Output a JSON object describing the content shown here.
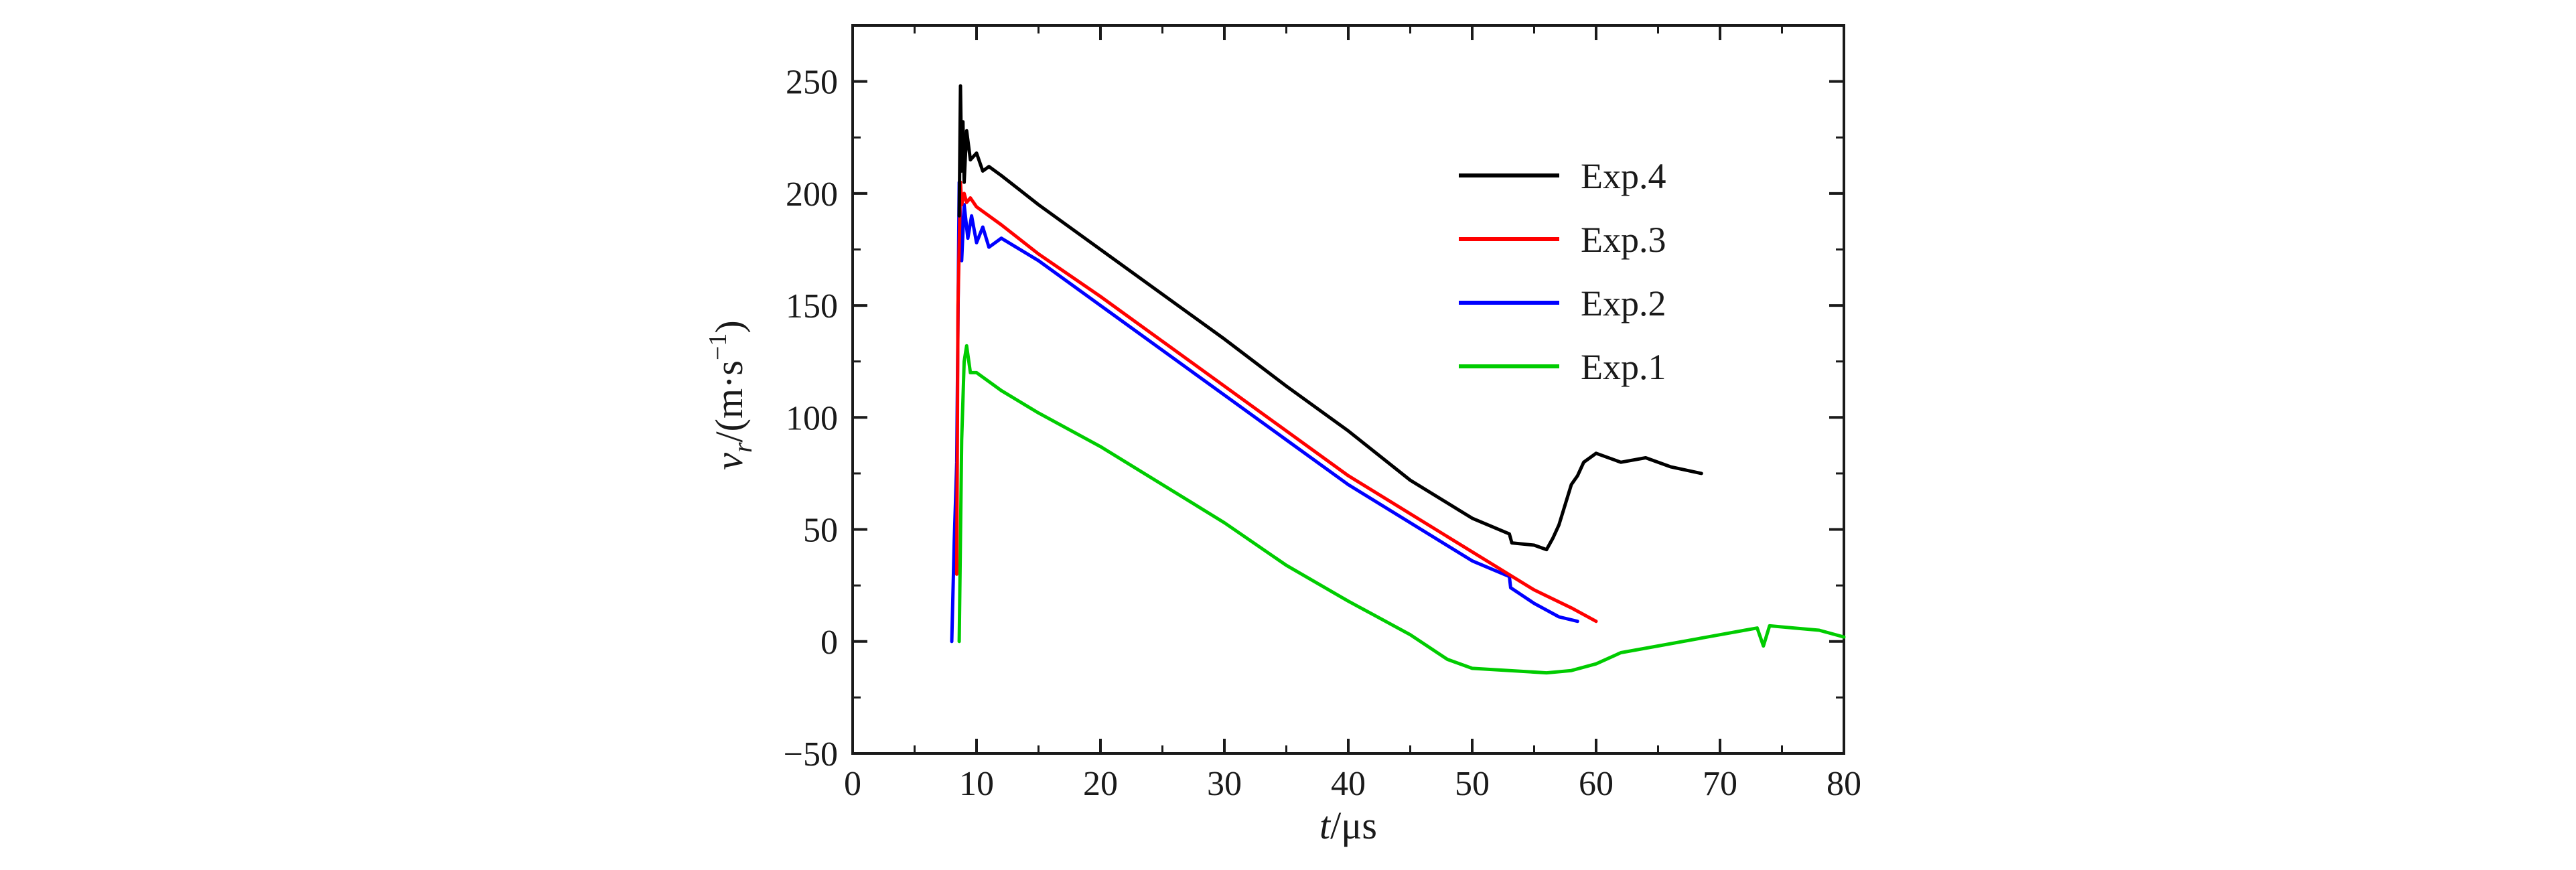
{
  "chart_data": {
    "type": "line",
    "xlabel": "t/μs",
    "ylabel": "vr/(m·s−1)",
    "xlim": [
      0,
      80
    ],
    "ylim": [
      -50,
      275
    ],
    "x_ticks": [
      0,
      10,
      20,
      30,
      40,
      50,
      60,
      70,
      80
    ],
    "y_ticks": [
      -50,
      0,
      50,
      100,
      150,
      200,
      250
    ],
    "legend_position": "top-right",
    "grid": false,
    "series": [
      {
        "name": "Exp.4",
        "color": "#000000",
        "x": [
          8.6,
          8.7,
          8.8,
          8.9,
          9.0,
          9.2,
          9.5,
          10.0,
          10.5,
          11.0,
          12,
          15,
          20,
          25,
          30,
          35,
          40,
          45,
          50,
          53,
          53.2,
          55,
          56,
          56.5,
          57,
          58,
          58.5,
          59,
          60,
          62,
          64,
          66,
          68.5
        ],
        "y": [
          190,
          248,
          210,
          232,
          205,
          228,
          215,
          218,
          210,
          212,
          208,
          195,
          175,
          155,
          135,
          114,
          94,
          72,
          55,
          48,
          44,
          43,
          41,
          46,
          52,
          70,
          74,
          80,
          84,
          80,
          82,
          78,
          75
        ]
      },
      {
        "name": "Exp.3",
        "color": "#ff0000",
        "x": [
          8.4,
          8.5,
          8.7,
          8.8,
          9.0,
          9.2,
          9.5,
          10,
          12,
          15,
          20,
          25,
          30,
          35,
          40,
          45,
          50,
          55,
          58,
          60
        ],
        "y": [
          30,
          150,
          205,
          195,
          200,
          196,
          198,
          194,
          186,
          173,
          154,
          134,
          114,
          94,
          74,
          57,
          40,
          23,
          15,
          9
        ]
      },
      {
        "name": "Exp.2",
        "color": "#0000ff",
        "x": [
          8.0,
          8.2,
          8.4,
          8.6,
          8.8,
          9.0,
          9.3,
          9.6,
          10,
          10.5,
          11,
          12,
          15,
          20,
          25,
          30,
          35,
          40,
          45,
          50,
          53,
          53.1,
          55,
          56,
          57,
          58.5
        ],
        "y": [
          0,
          45,
          80,
          205,
          170,
          195,
          180,
          190,
          178,
          185,
          176,
          180,
          170,
          150,
          130,
          110,
          90,
          70,
          53,
          36,
          29,
          24,
          17,
          14,
          11,
          9
        ]
      },
      {
        "name": "Exp.1",
        "color": "#00cc00",
        "x": [
          8.6,
          8.8,
          9.0,
          9.2,
          9.5,
          10,
          12,
          15,
          20,
          25,
          30,
          35,
          40,
          42,
          45,
          48,
          50,
          53,
          56,
          58,
          60,
          62,
          65,
          68,
          70,
          72,
          73,
          73.5,
          74,
          76,
          78,
          80
        ],
        "y": [
          0,
          90,
          125,
          132,
          120,
          120,
          112,
          102,
          87,
          70,
          53,
          34,
          18,
          12,
          3,
          -8,
          -12,
          -13,
          -14,
          -13,
          -10,
          -5,
          -2,
          1,
          3,
          5,
          6,
          -2,
          7,
          6,
          5,
          2
        ]
      }
    ]
  }
}
